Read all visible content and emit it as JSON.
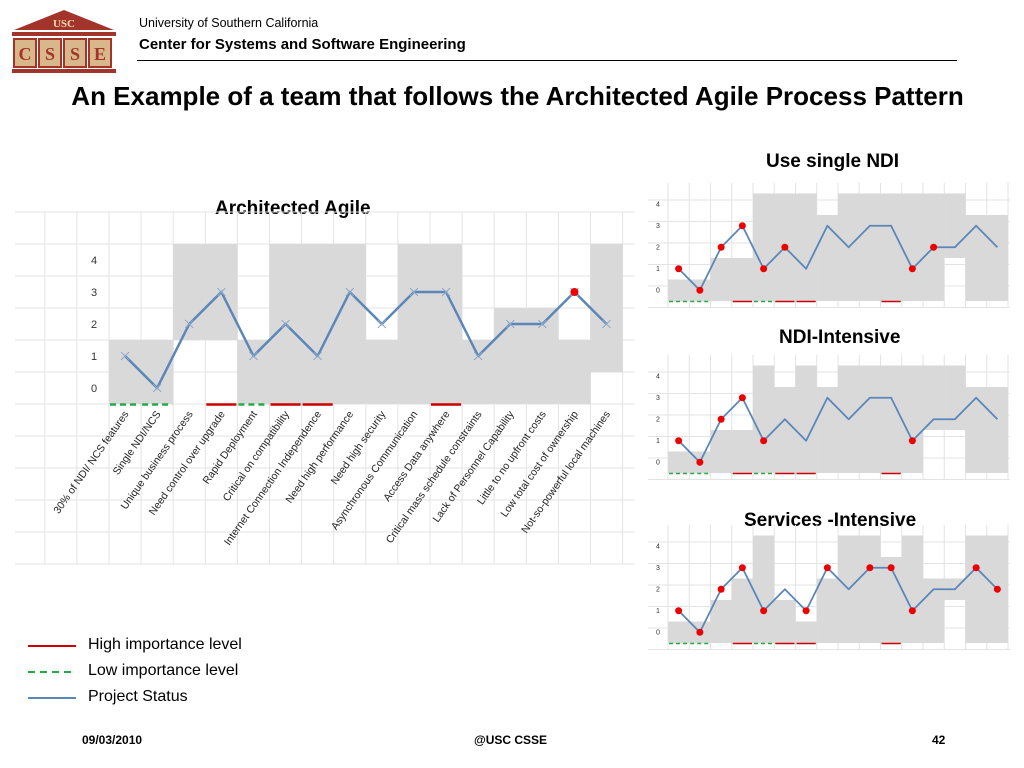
{
  "header": {
    "logo_text_top": "USC",
    "logo_letters": [
      "C",
      "S",
      "S",
      "E"
    ],
    "university": "University of Southern California",
    "center": "Center for Systems and Software Engineering"
  },
  "title": "An Example of a team that follows the Architected Agile Process Pattern",
  "legend": {
    "high": "High importance level",
    "low": "Low importance level",
    "status": "Project Status"
  },
  "footer": {
    "date": "09/03/2010",
    "org": "@USC CSSE",
    "page": "42"
  },
  "colors": {
    "status_line": "#5b86b8",
    "high": "#cc0000",
    "low": "#22aa44",
    "band": "#d9d9d9",
    "dot": "#ee0000",
    "logo_red": "#a3342c",
    "logo_tan": "#d8b88a"
  },
  "chart_data": [
    {
      "type": "line",
      "title": "Architected Agile",
      "categories": [
        "30% of NDI/ NCS features",
        "Single NDI/NCS",
        "Unique business process",
        "Need control over upgrade",
        "Rapid Deployment",
        "Critical on compatibility",
        "Internet Connection Independence",
        "Need high performance",
        "Need high security",
        "Asynchronous Communication",
        "Access Data anywhere",
        "Critical mass schedule constraints",
        "Lack of Personnel Capability",
        "Little to no upfront costs",
        "Low total cost of ownership",
        "Not-so-powerful local machines"
      ],
      "y_ticks": [
        "0",
        "1",
        "2",
        "3",
        "4"
      ],
      "ylim": [
        0,
        4
      ],
      "series": [
        {
          "values": [
            1,
            0,
            2,
            3,
            1,
            2,
            1,
            3,
            2,
            3,
            3,
            1,
            2,
            2,
            3,
            2
          ]
        }
      ],
      "bands": [
        [
          -0.5,
          1.5
        ],
        [
          -0.5,
          1.5
        ],
        [
          1.5,
          4.5
        ],
        [
          1.5,
          4.5
        ],
        [
          -0.5,
          1.5
        ],
        [
          -0.5,
          4.5
        ],
        [
          -0.5,
          4.5
        ],
        [
          -0.5,
          4.5
        ],
        [
          -0.5,
          1.5
        ],
        [
          -0.5,
          4.5
        ],
        [
          -0.5,
          4.5
        ],
        [
          -0.5,
          1.5
        ],
        [
          -0.5,
          2.5
        ],
        [
          -0.5,
          2.5
        ],
        [
          -0.5,
          1.5
        ],
        [
          0.5,
          4.5
        ]
      ],
      "importance": [
        "low",
        "low",
        "",
        "high",
        "low",
        "high",
        "high",
        "",
        "",
        "",
        "high",
        "",
        "",
        "",
        "",
        ""
      ],
      "red_markers": [
        14
      ]
    },
    {
      "type": "line",
      "title": "Use single NDI",
      "y_ticks": [
        "0",
        "1",
        "2",
        "3",
        "4"
      ],
      "ylim": [
        0,
        4
      ],
      "series": [
        {
          "values": [
            1,
            0,
            2,
            3,
            1,
            2,
            1,
            3,
            2,
            3,
            3,
            1,
            2,
            2,
            3,
            2
          ]
        }
      ],
      "bands": [
        [
          -0.5,
          0.5
        ],
        [
          -0.5,
          0.5
        ],
        [
          -0.5,
          1.5
        ],
        [
          -0.5,
          1.5
        ],
        [
          -0.5,
          4.5
        ],
        [
          -0.5,
          4.5
        ],
        [
          -0.5,
          4.5
        ],
        [
          -0.5,
          3.5
        ],
        [
          -0.5,
          4.5
        ],
        [
          -0.5,
          4.5
        ],
        [
          -0.5,
          4.5
        ],
        [
          -0.5,
          4.5
        ],
        [
          -0.5,
          4.5
        ],
        [
          1.5,
          4.5
        ],
        [
          -0.5,
          3.5
        ],
        [
          -0.5,
          3.5
        ]
      ],
      "importance": [
        "low",
        "low",
        "",
        "high",
        "low",
        "high",
        "high",
        "",
        "",
        "",
        "high",
        "",
        "",
        "",
        "",
        ""
      ],
      "red_markers": [
        0,
        1,
        2,
        3,
        4,
        5,
        11,
        12
      ]
    },
    {
      "type": "line",
      "title": "NDI-Intensive",
      "y_ticks": [
        "0",
        "1",
        "2",
        "3",
        "4"
      ],
      "ylim": [
        0,
        4
      ],
      "series": [
        {
          "values": [
            1,
            0,
            2,
            3,
            1,
            2,
            1,
            3,
            2,
            3,
            3,
            1,
            2,
            2,
            3,
            2
          ]
        }
      ],
      "bands": [
        [
          -0.5,
          0.5
        ],
        [
          -0.5,
          0.5
        ],
        [
          -0.5,
          1.5
        ],
        [
          -0.5,
          1.5
        ],
        [
          -0.5,
          4.5
        ],
        [
          -0.5,
          3.5
        ],
        [
          -0.5,
          4.5
        ],
        [
          -0.5,
          3.5
        ],
        [
          -0.5,
          4.5
        ],
        [
          -0.5,
          4.5
        ],
        [
          -0.5,
          4.5
        ],
        [
          -0.5,
          4.5
        ],
        [
          1.5,
          4.5
        ],
        [
          1.5,
          4.5
        ],
        [
          -0.5,
          3.5
        ],
        [
          -0.5,
          3.5
        ]
      ],
      "importance": [
        "low",
        "low",
        "",
        "high",
        "low",
        "high",
        "high",
        "",
        "",
        "",
        "high",
        "",
        "",
        "",
        "",
        ""
      ],
      "red_markers": [
        0,
        1,
        2,
        3,
        4,
        11
      ]
    },
    {
      "type": "line",
      "title": "Services -Intensive",
      "y_ticks": [
        "0",
        "1",
        "2",
        "3",
        "4"
      ],
      "ylim": [
        0,
        4
      ],
      "series": [
        {
          "values": [
            1,
            0,
            2,
            3,
            1,
            2,
            1,
            3,
            2,
            3,
            3,
            1,
            2,
            2,
            3,
            2
          ]
        }
      ],
      "bands": [
        [
          -0.5,
          0.5
        ],
        [
          -0.5,
          0.5
        ],
        [
          -0.5,
          1.5
        ],
        [
          -0.5,
          2.5
        ],
        [
          -0.5,
          4.5
        ],
        [
          -0.5,
          1.5
        ],
        [
          -0.5,
          0.5
        ],
        [
          -0.5,
          2.5
        ],
        [
          -0.5,
          4.5
        ],
        [
          -0.5,
          4.5
        ],
        [
          -0.5,
          3.5
        ],
        [
          -0.5,
          4.5
        ],
        [
          -0.5,
          2.5
        ],
        [
          1.5,
          2.5
        ],
        [
          -0.5,
          4.5
        ],
        [
          -0.5,
          4.5
        ]
      ],
      "importance": [
        "low",
        "low",
        "",
        "high",
        "low",
        "high",
        "high",
        "",
        "",
        "",
        "high",
        "",
        "",
        "",
        "",
        ""
      ],
      "red_markers": [
        0,
        1,
        2,
        3,
        4,
        6,
        7,
        9,
        10,
        11,
        14,
        15
      ]
    }
  ]
}
